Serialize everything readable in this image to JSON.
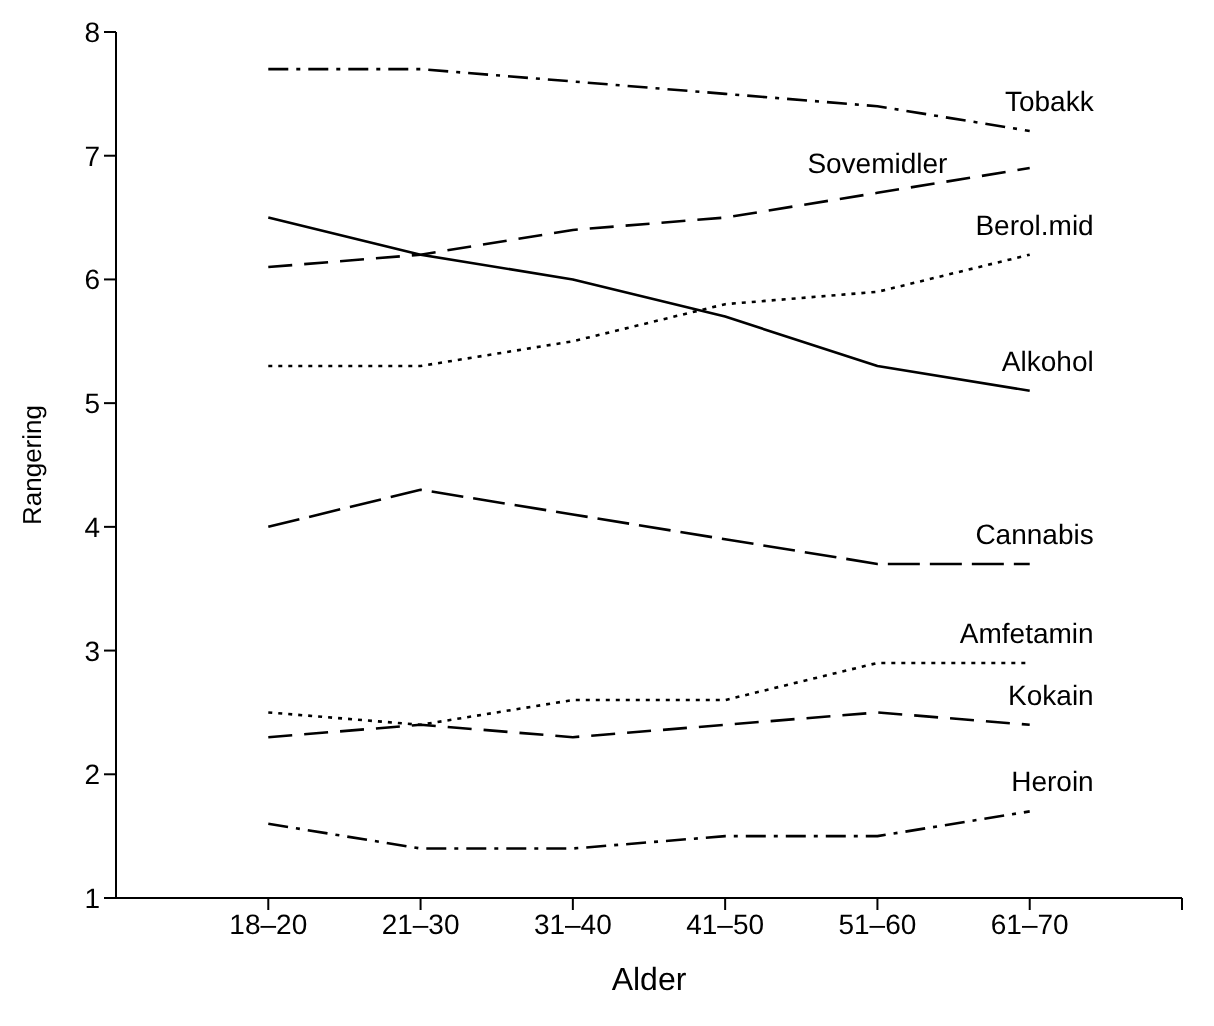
{
  "chart_data": {
    "type": "line",
    "xlabel": "Alder",
    "ylabel": "Rangering",
    "categories": [
      "18–20",
      "21–30",
      "31–40",
      "41–50",
      "51–60",
      "61–70"
    ],
    "ylim": [
      1,
      8
    ],
    "yticks": [
      1,
      2,
      3,
      4,
      5,
      6,
      7,
      8
    ],
    "grid": false,
    "marker": "none",
    "series": [
      {
        "name": "Tobakk",
        "color": "#000000",
        "line_style": "dashdot",
        "values": [
          7.7,
          7.7,
          7.6,
          7.5,
          7.4,
          7.2
        ]
      },
      {
        "name": "Sovemidler",
        "color": "#000000",
        "line_style": "dashed",
        "values": [
          6.1,
          6.2,
          6.4,
          6.5,
          6.7,
          6.9
        ]
      },
      {
        "name": "Berol.mid",
        "color": "#000000",
        "line_style": "dotted",
        "values": [
          5.3,
          5.3,
          5.5,
          5.8,
          5.9,
          6.2
        ]
      },
      {
        "name": "Alkohol",
        "color": "#000000",
        "line_style": "solid",
        "values": [
          6.5,
          6.2,
          6.0,
          5.7,
          5.3,
          5.1
        ]
      },
      {
        "name": "Cannabis",
        "color": "#000000",
        "line_style": "dashed",
        "values": [
          4.0,
          4.3,
          4.1,
          3.9,
          3.7,
          3.7
        ]
      },
      {
        "name": "Amfetamin",
        "color": "#000000",
        "line_style": "dotted",
        "values": [
          2.5,
          2.4,
          2.6,
          2.6,
          2.9,
          2.9
        ]
      },
      {
        "name": "Kokain",
        "color": "#000000",
        "line_style": "dashed",
        "values": [
          2.3,
          2.4,
          2.3,
          2.4,
          2.5,
          2.4
        ]
      },
      {
        "name": "Heroin",
        "color": "#000000",
        "line_style": "dashdot",
        "values": [
          1.6,
          1.4,
          1.4,
          1.5,
          1.5,
          1.7
        ]
      }
    ]
  }
}
